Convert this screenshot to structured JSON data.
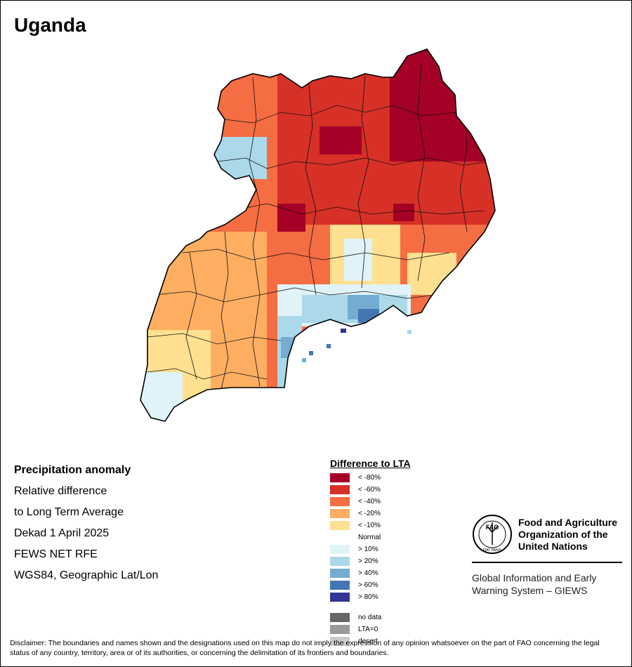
{
  "title": "Uganda",
  "info": {
    "heading": "Precipitation anomaly",
    "line1": "Relative difference",
    "line2": "to Long Term Average",
    "line3": "Dekad 1 April 2025",
    "line4": "FEWS NET RFE",
    "line5": "WGS84, Geographic Lat/Lon"
  },
  "legend": {
    "title": "Difference to LTA",
    "dry": [
      {
        "label": "< -80%",
        "color": "#a50026"
      },
      {
        "label": "< -60%",
        "color": "#d73027"
      },
      {
        "label": "< -40%",
        "color": "#f46d43"
      },
      {
        "label": "< -20%",
        "color": "#fdae61"
      },
      {
        "label": "< -10%",
        "color": "#fee090"
      }
    ],
    "normal": "Normal",
    "wet": [
      {
        "label": "> 10%",
        "color": "#e0f3f8"
      },
      {
        "label": "> 20%",
        "color": "#abd9e9"
      },
      {
        "label": "> 40%",
        "color": "#74add1"
      },
      {
        "label": "> 60%",
        "color": "#4575b4"
      },
      {
        "label": "> 80%",
        "color": "#313695"
      }
    ],
    "other": [
      {
        "label": "no data",
        "color": "#666666"
      },
      {
        "label": "LTA=0",
        "color": "#999999"
      },
      {
        "label": "desert",
        "color": "#cccccc"
      }
    ]
  },
  "fao": {
    "name_line1": "Food and Agriculture",
    "name_line2": "Organization of the",
    "name_line3": "United Nations",
    "logo_text": "FAO",
    "logo_motto": "FIAT PANIS",
    "giews_line1": "Global Information and Early",
    "giews_line2": "Warning System – GIEWS"
  },
  "disclaimer": "Disclaimer: The boundaries and names shown and the designations used on this map do not imply the expression of any opinion whatsoever on the part of FAO concerning the legal status of any country, territory, area or of its authorities, or concerning the delimitation of its frontiers and boundaries."
}
